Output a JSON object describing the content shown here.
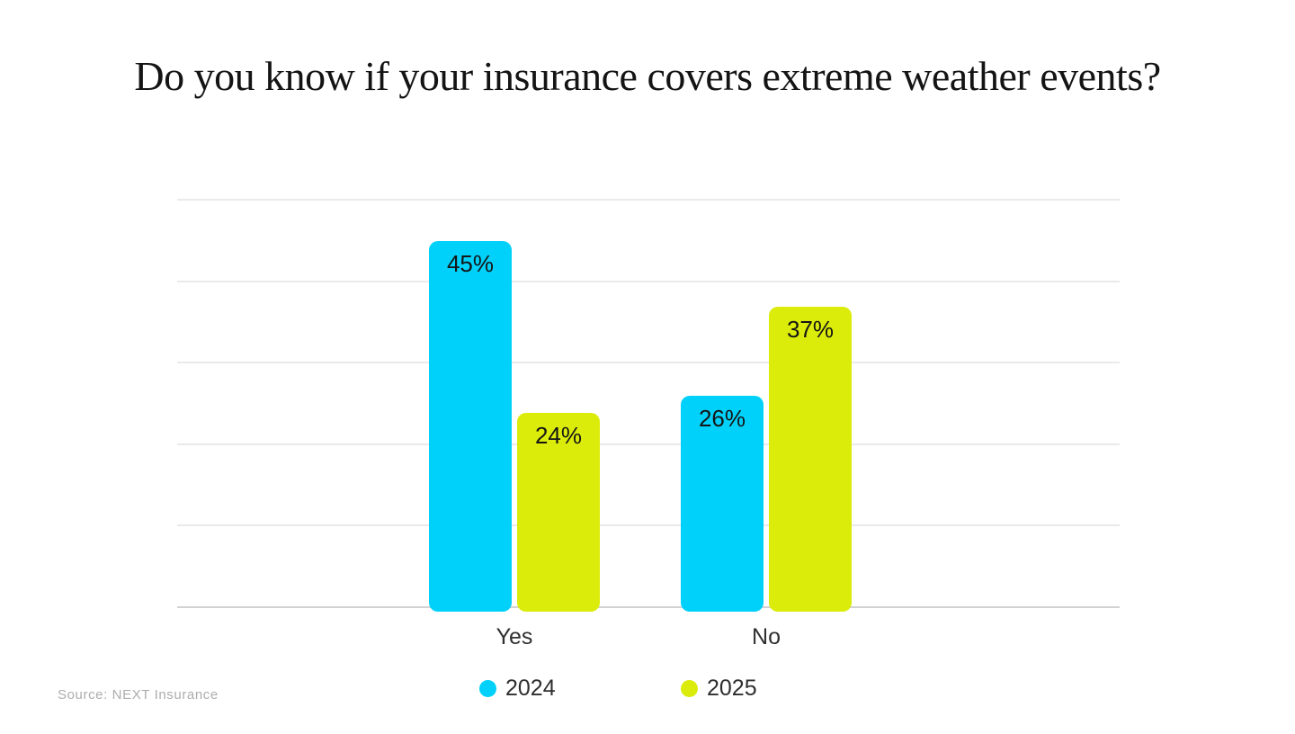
{
  "title": "Do you know if your insurance covers extreme weather events?",
  "source_note": "Source: NEXT Insurance",
  "colors": {
    "series_2024": "#00d1fa",
    "series_2025": "#dbec0a",
    "gridline": "#eaeaea",
    "baseline": "#d2d2d2",
    "title_text": "#141414",
    "value_label_text": "#151515",
    "axis_label_text": "#303030",
    "source_text": "#adadad",
    "background": "#ffffff"
  },
  "chart_data": {
    "type": "bar",
    "title": "Do you know if your insurance covers extreme weather events?",
    "categories": [
      "Yes",
      "No"
    ],
    "series": [
      {
        "name": "2024",
        "color": "#00d1fa",
        "values": [
          45,
          26
        ],
        "labels": [
          "45%",
          "26%"
        ]
      },
      {
        "name": "2025",
        "color": "#dbec0a",
        "values": [
          24,
          37
        ],
        "labels": [
          "24%",
          "37%"
        ]
      }
    ],
    "xlabel": "",
    "ylabel": "",
    "ylim": [
      0,
      50
    ],
    "gridline_step": 10,
    "grid": true,
    "y_axis_labels_shown": false,
    "value_labels_position": "inside-top",
    "legend_position": "bottom",
    "source": "Source: NEXT Insurance"
  },
  "legend": {
    "items": [
      {
        "label": "2024",
        "color": "#00d1fa"
      },
      {
        "label": "2025",
        "color": "#dbec0a"
      }
    ]
  }
}
